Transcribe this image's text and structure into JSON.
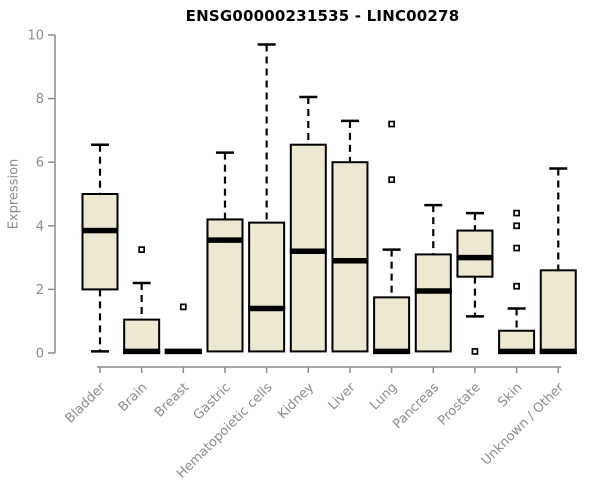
{
  "chart_data": {
    "type": "boxplot",
    "title": "ENSG00000231535 - LINC00278",
    "ylabel": "Expression",
    "ylim": [
      0,
      10
    ],
    "yticks": [
      0,
      2,
      4,
      6,
      8,
      10
    ],
    "grid": "off",
    "legend": "none",
    "categories": [
      "Bladder",
      "Brain",
      "Breast",
      "Gastric",
      "Hematopoietic cells",
      "Kidney",
      "Liver",
      "Lung",
      "Pancreas",
      "Prostate",
      "Skin",
      "Unknown / Other"
    ],
    "series": [
      {
        "category": "Bladder",
        "whisker_low": 0.05,
        "q1": 2.0,
        "median": 3.85,
        "q3": 5.0,
        "whisker_high": 6.55,
        "outliers": []
      },
      {
        "category": "Brain",
        "whisker_low": 0,
        "q1": 0,
        "median": 0.05,
        "q3": 1.05,
        "whisker_high": 2.2,
        "outliers": [
          3.25
        ]
      },
      {
        "category": "Breast",
        "whisker_low": 0,
        "q1": 0,
        "median": 0.05,
        "q3": 0.1,
        "whisker_high": 0.1,
        "outliers": [
          1.45
        ]
      },
      {
        "category": "Gastric",
        "whisker_low": 0.05,
        "q1": 0.05,
        "median": 3.55,
        "q3": 4.2,
        "whisker_high": 6.3,
        "outliers": []
      },
      {
        "category": "Hematopoietic cells",
        "whisker_low": 0.05,
        "q1": 0.05,
        "median": 1.4,
        "q3": 4.1,
        "whisker_high": 9.7,
        "outliers": []
      },
      {
        "category": "Kidney",
        "whisker_low": 0.05,
        "q1": 0.05,
        "median": 3.2,
        "q3": 6.55,
        "whisker_high": 8.05,
        "outliers": []
      },
      {
        "category": "Liver",
        "whisker_low": 0.05,
        "q1": 0.05,
        "median": 2.9,
        "q3": 6.0,
        "whisker_high": 7.3,
        "outliers": []
      },
      {
        "category": "Lung",
        "whisker_low": 0,
        "q1": 0,
        "median": 0.05,
        "q3": 1.75,
        "whisker_high": 3.25,
        "outliers": [
          5.45,
          7.2
        ]
      },
      {
        "category": "Pancreas",
        "whisker_low": 0.05,
        "q1": 0.05,
        "median": 1.95,
        "q3": 3.1,
        "whisker_high": 4.65,
        "outliers": []
      },
      {
        "category": "Prostate",
        "whisker_low": 1.15,
        "q1": 2.4,
        "median": 3.0,
        "q3": 3.85,
        "whisker_high": 4.4,
        "outliers": [
          0.05
        ]
      },
      {
        "category": "Skin",
        "whisker_low": 0,
        "q1": 0,
        "median": 0.05,
        "q3": 0.7,
        "whisker_high": 1.4,
        "outliers": [
          2.1,
          3.3,
          4.0,
          4.4
        ]
      },
      {
        "category": "Unknown / Other",
        "whisker_low": 0,
        "q1": 0,
        "median": 0.05,
        "q3": 2.6,
        "whisker_high": 5.8,
        "outliers": []
      }
    ],
    "colors": {
      "box_fill": "#EDE8D1",
      "box_stroke": "#000000",
      "median": "#000000",
      "axis": "#8C8C8C",
      "label": "#8C8C8C",
      "title": "#000000",
      "background": "#FFFFFF"
    }
  }
}
